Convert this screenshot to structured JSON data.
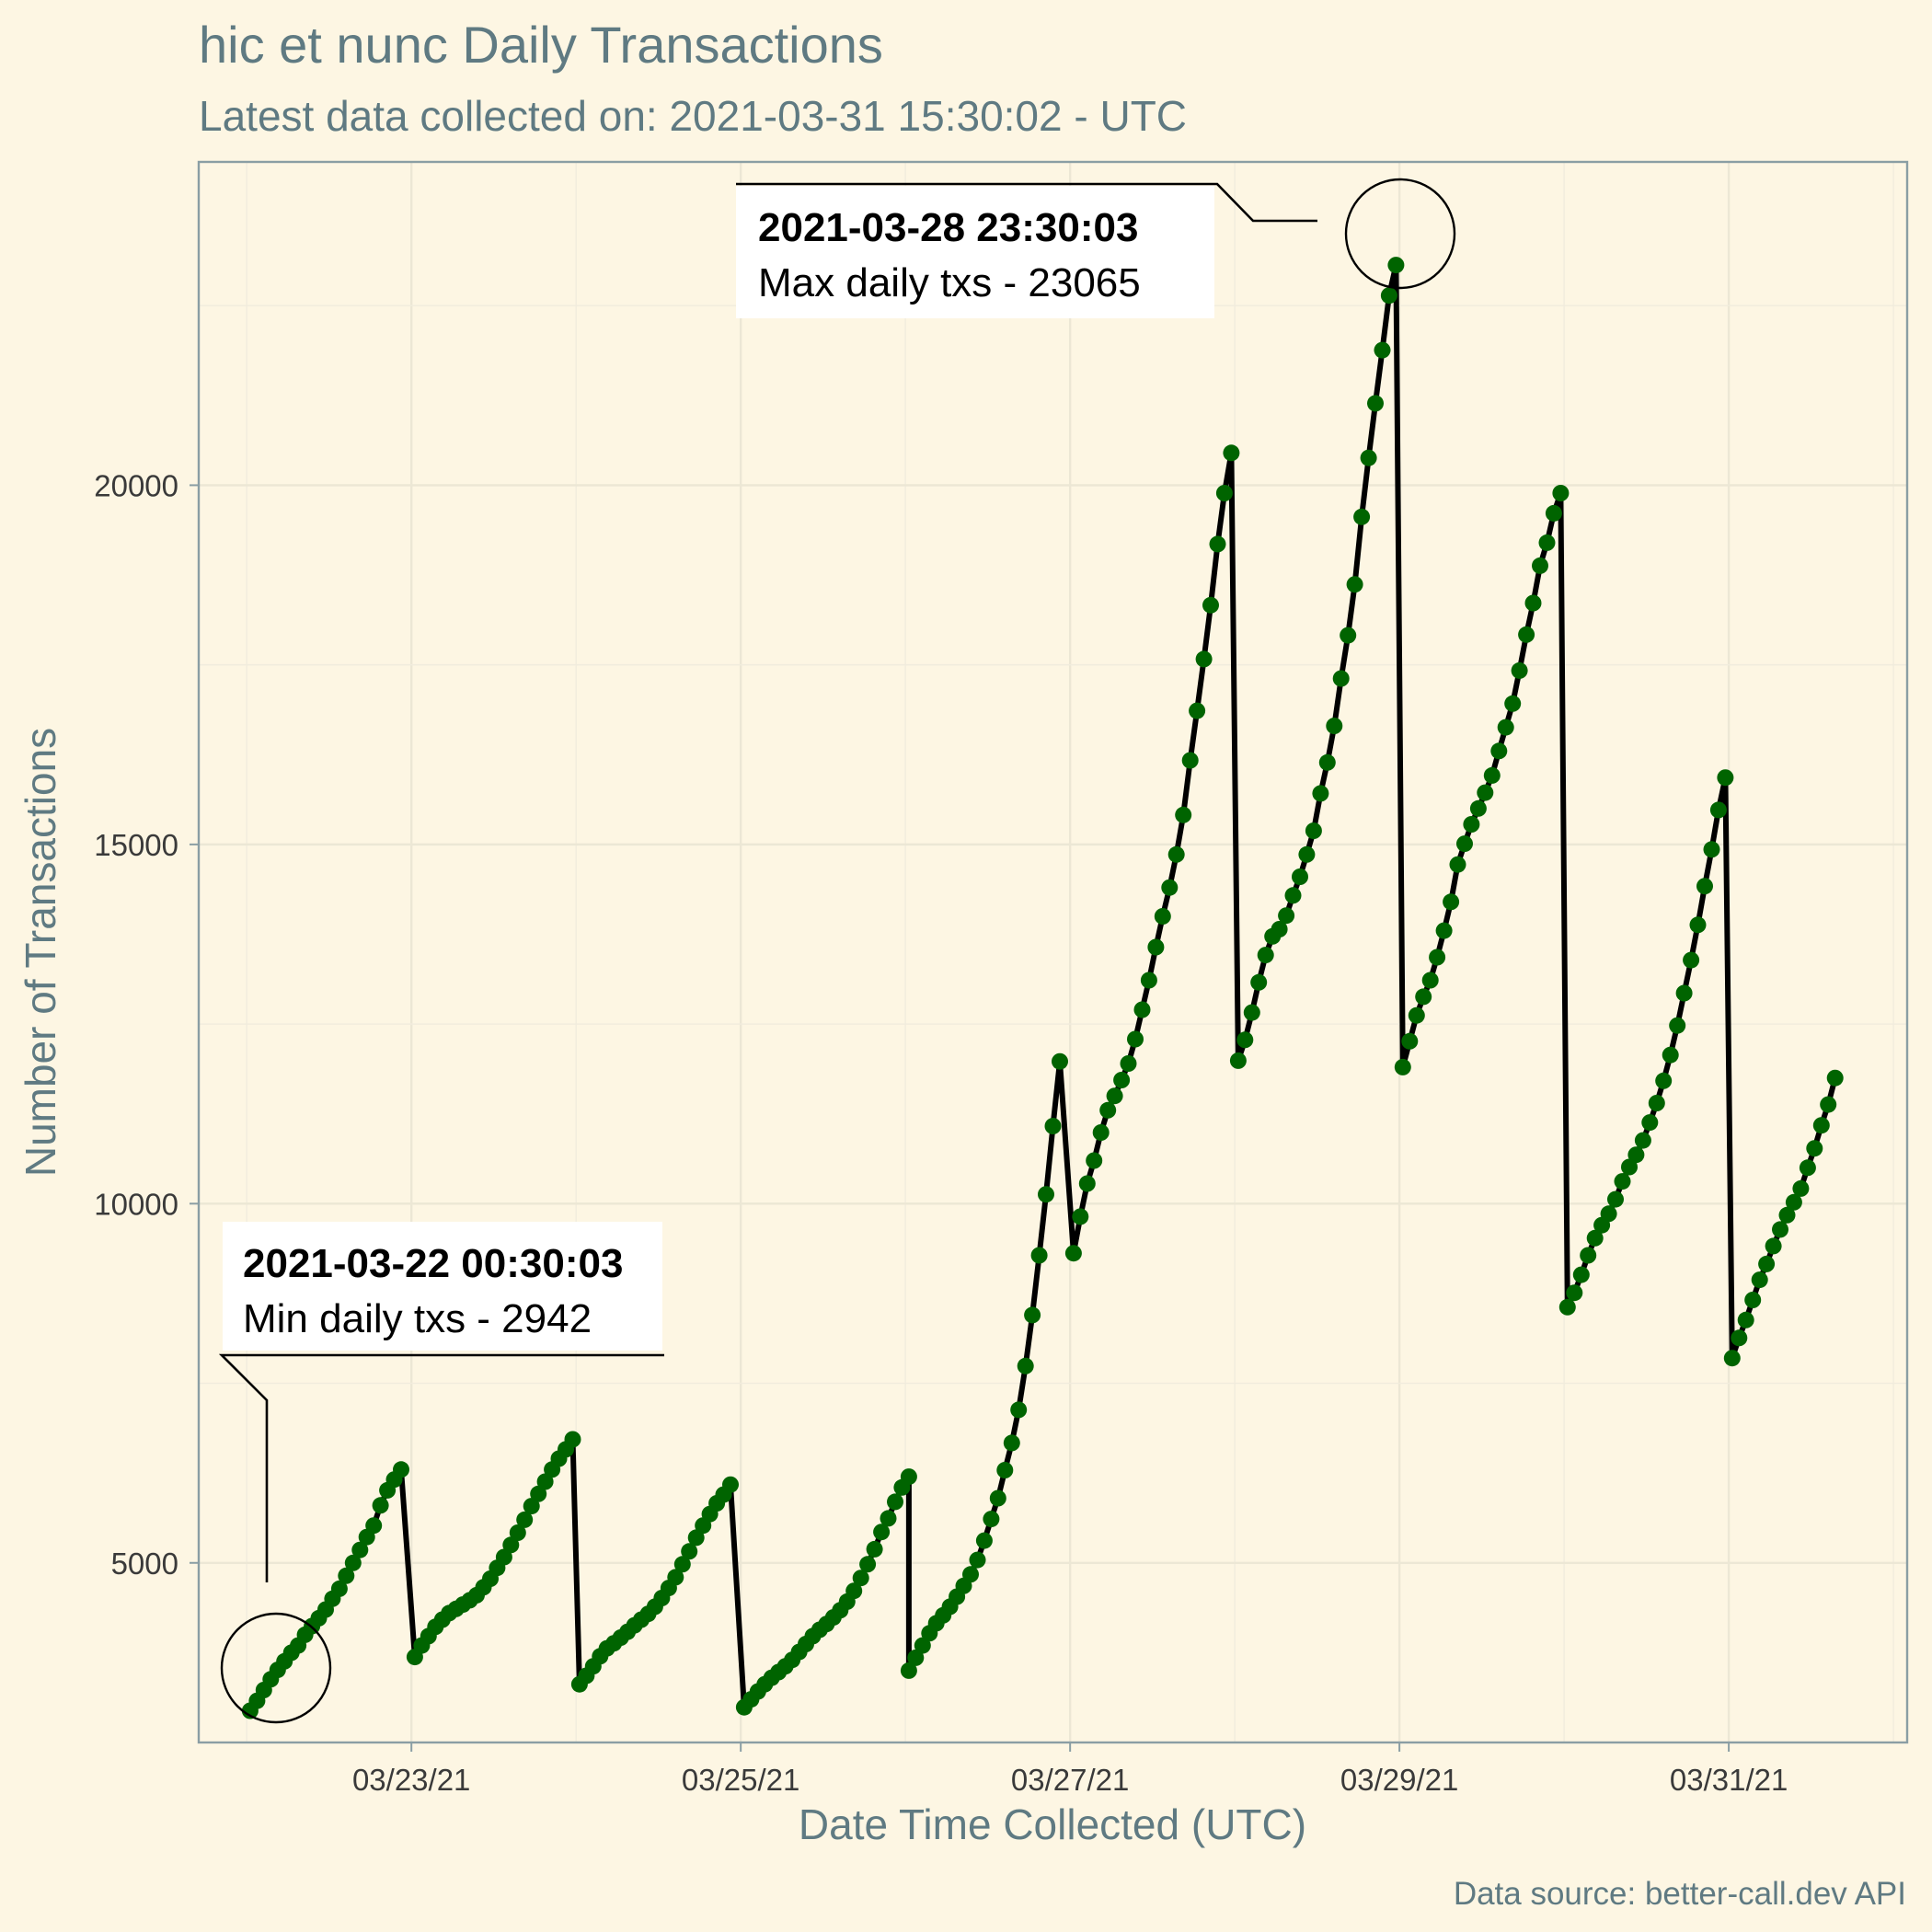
{
  "chart_data": {
    "type": "line",
    "title": "hic et nunc Daily Transactions",
    "subtitle": "Latest data collected on: 2021-03-31 15:30:02  - UTC",
    "xlabel": "Date Time Collected (UTC)",
    "ylabel": "Number of Transactions",
    "caption": "Data source: better-call.dev API",
    "x_ticks": [
      "03/23/21",
      "03/25/21",
      "03/27/21",
      "03/29/21",
      "03/31/21"
    ],
    "y_ticks": [
      5000,
      10000,
      15000,
      20000
    ],
    "xlim": [
      "2021-03-21 17:00",
      "2021-04-01 02:00"
    ],
    "ylim": [
      2500,
      24500
    ],
    "grid": true,
    "line_color": "#000000",
    "point_color": "#006400",
    "background": "#fdf6e3",
    "series": [
      {
        "segments": [
          {
            "start": "2021-03-22 00:30",
            "values": [
              2942,
              3080,
              3230,
              3380,
              3510,
              3630,
              3750,
              3850,
              4000,
              4120,
              4230,
              4350,
              4500,
              4640,
              4820,
              5000,
              5180,
              5360,
              5520,
              5800,
              6010,
              6160,
              6300
            ]
          },
          {
            "start": "2021-03-23 00:30",
            "values": [
              3690,
              3850,
              3980,
              4110,
              4210,
              4300,
              4360,
              4420,
              4480,
              4550,
              4660,
              4780,
              4930,
              5080,
              5250,
              5420,
              5600,
              5790,
              5960,
              6130,
              6300,
              6450,
              6580,
              6720
            ]
          },
          {
            "start": "2021-03-24 00:30",
            "values": [
              3310,
              3430,
              3560,
              3700,
              3810,
              3880,
              3960,
              4040,
              4130,
              4210,
              4290,
              4390,
              4510,
              4650,
              4800,
              4980,
              5160,
              5350,
              5520,
              5680,
              5830,
              5950,
              6090
            ]
          },
          {
            "start": "2021-03-25 00:30",
            "values": [
              2990,
              3100,
              3210,
              3310,
              3400,
              3480,
              3560,
              3650,
              3760,
              3870,
              3980,
              4070,
              4150,
              4240,
              4340,
              4460,
              4610,
              4790,
              4980,
              5190,
              5430,
              5620,
              5850,
              6050,
              6200
            ]
          },
          {
            "start": "2021-03-26 00:30",
            "values": [
              3500,
              3680,
              3850,
              4020,
              4160,
              4270,
              4390,
              4530,
              4680,
              4840,
              5040,
              5310,
              5610,
              5900,
              6290,
              6670,
              7130,
              7740,
              8450,
              9280,
              10130,
              11080,
              11980
            ]
          },
          {
            "start": "2021-03-27 00:30",
            "values": [
              9310,
              9820,
              10280,
              10600,
              10990,
              11300,
              11500,
              11720,
              11950,
              12290,
              12700,
              13110,
              13570,
              14000,
              14400,
              14860,
              15410,
              16170,
              16860,
              17580,
              18330,
              19180,
              19890,
              20450
            ]
          },
          {
            "start": "2021-03-28 00:30",
            "values": [
              11990,
              12280,
              12660,
              13080,
              13460,
              13720,
              13820,
              14010,
              14290,
              14550,
              14860,
              15190,
              15710,
              16140,
              16650,
              17310,
              17910,
              18620,
              19560,
              20380,
              21140,
              21880,
              22640,
              23065
            ]
          },
          {
            "start": "2021-03-29 00:30",
            "values": [
              11900,
              12260,
              12620,
              12880,
              13110,
              13430,
              13800,
              14200,
              14720,
              15010,
              15280,
              15500,
              15720,
              15960,
              16300,
              16630,
              16960,
              17420,
              17920,
              18360,
              18880,
              19200,
              19610,
              19890
            ]
          },
          {
            "start": "2021-03-30 00:30",
            "values": [
              8560,
              8760,
              9010,
              9280,
              9520,
              9700,
              9860,
              10060,
              10310,
              10510,
              10680,
              10880,
              11130,
              11400,
              11710,
              12070,
              12480,
              12930,
              13390,
              13880,
              14420,
              14930,
              15480,
              15930
            ]
          },
          {
            "start": "2021-03-31 00:30",
            "values": [
              7850,
              8130,
              8380,
              8660,
              8940,
              9160,
              9410,
              9640,
              9840,
              10020,
              10210,
              10500,
              10770,
              11090,
              11380,
              11750
            ]
          }
        ]
      }
    ],
    "annotations": [
      {
        "datetime": "2021-03-22 00:30:03",
        "label_bold": "2021-03-22 00:30:03",
        "label": "Min daily txs - 2942",
        "value": 2942
      },
      {
        "datetime": "2021-03-28 23:30:03",
        "label_bold": "2021-03-28 23:30:03",
        "label": "Max daily txs - 23065",
        "value": 23065
      }
    ]
  }
}
